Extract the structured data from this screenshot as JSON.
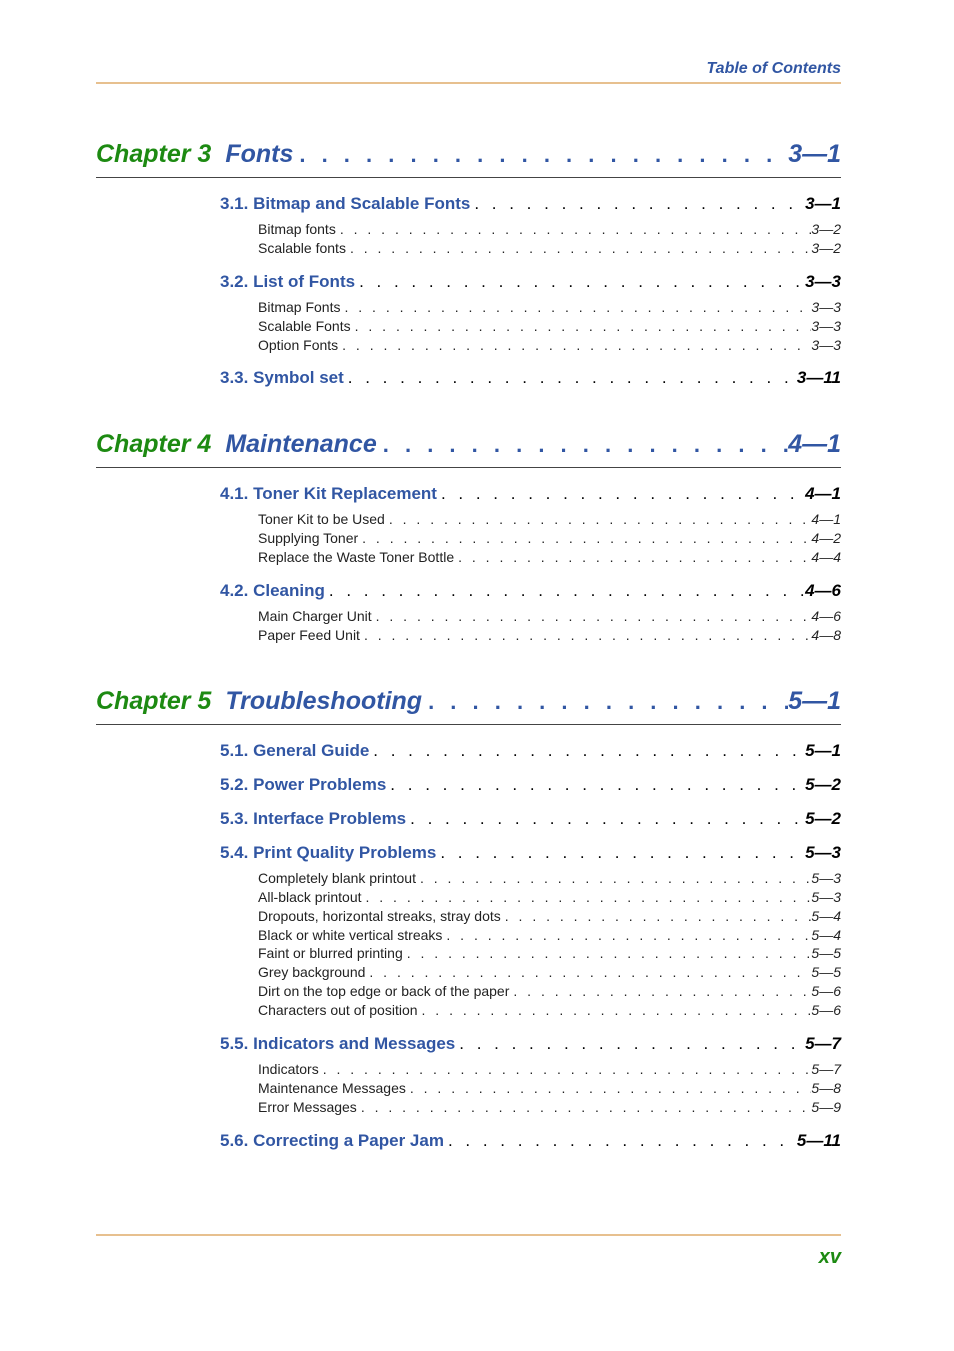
{
  "header": {
    "title": "Table of Contents"
  },
  "footer": {
    "page_number": "xv"
  },
  "colors": {
    "chapter_label": "#1d8a12",
    "chapter_title": "#3156a3",
    "section": "#3156a3",
    "rule": "#e7c08f",
    "page_number": "#1d8a12"
  },
  "chapters": [
    {
      "label": "Chapter 3",
      "title": "Fonts",
      "page": "3—1",
      "sections": [
        {
          "title": "3.1. Bitmap and Scalable Fonts",
          "page": "3—1",
          "subs": [
            {
              "title": "Bitmap fonts",
              "page": "3—2"
            },
            {
              "title": "Scalable fonts",
              "page": "3—2"
            }
          ]
        },
        {
          "title": "3.2. List of Fonts",
          "page": "3—3",
          "subs": [
            {
              "title": "Bitmap Fonts",
              "page": "3—3"
            },
            {
              "title": "Scalable Fonts",
              "page": "3—3"
            },
            {
              "title": "Option Fonts",
              "page": "3—3"
            }
          ]
        },
        {
          "title": "3.3. Symbol set",
          "page": "3—11",
          "subs": []
        }
      ]
    },
    {
      "label": "Chapter 4",
      "title": "Maintenance",
      "page": "4—1",
      "sections": [
        {
          "title": "4.1. Toner Kit Replacement",
          "page": "4—1",
          "subs": [
            {
              "title": "Toner Kit to be Used",
              "page": "4—1"
            },
            {
              "title": "Supplying Toner",
              "page": "4—2"
            },
            {
              "title": "Replace the Waste Toner Bottle",
              "page": "4—4"
            }
          ]
        },
        {
          "title": "4.2. Cleaning",
          "page": "4—6",
          "subs": [
            {
              "title": "Main Charger Unit",
              "page": "4—6"
            },
            {
              "title": "Paper Feed Unit",
              "page": "4—8"
            }
          ]
        }
      ]
    },
    {
      "label": "Chapter 5",
      "title": "Troubleshooting",
      "page": "5—1",
      "sections": [
        {
          "title": "5.1. General Guide",
          "page": "5—1",
          "subs": []
        },
        {
          "title": "5.2. Power Problems",
          "page": "5—2",
          "subs": []
        },
        {
          "title": "5.3. Interface Problems",
          "page": "5—2",
          "subs": []
        },
        {
          "title": "5.4. Print Quality Problems",
          "page": "5—3",
          "subs": [
            {
              "title": "Completely blank printout",
              "page": "5—3"
            },
            {
              "title": "All-black printout",
              "page": "5—3"
            },
            {
              "title": "Dropouts, horizontal streaks, stray dots",
              "page": "5—4"
            },
            {
              "title": "Black or white vertical streaks",
              "page": "5—4"
            },
            {
              "title": "Faint or blurred printing",
              "page": "5—5"
            },
            {
              "title": "Grey background",
              "page": "5—5"
            },
            {
              "title": "Dirt on the top edge or back of the paper",
              "page": "5—6"
            },
            {
              "title": "Characters out of position",
              "page": "5—6"
            }
          ]
        },
        {
          "title": "5.5. Indicators and Messages",
          "page": "5—7",
          "subs": [
            {
              "title": "Indicators",
              "page": "5—7"
            },
            {
              "title": "Maintenance Messages",
              "page": "5—8"
            },
            {
              "title": "Error Messages",
              "page": "5—9"
            }
          ]
        },
        {
          "title": "5.6. Correcting a Paper Jam",
          "page": "5—11",
          "subs": []
        }
      ]
    }
  ]
}
